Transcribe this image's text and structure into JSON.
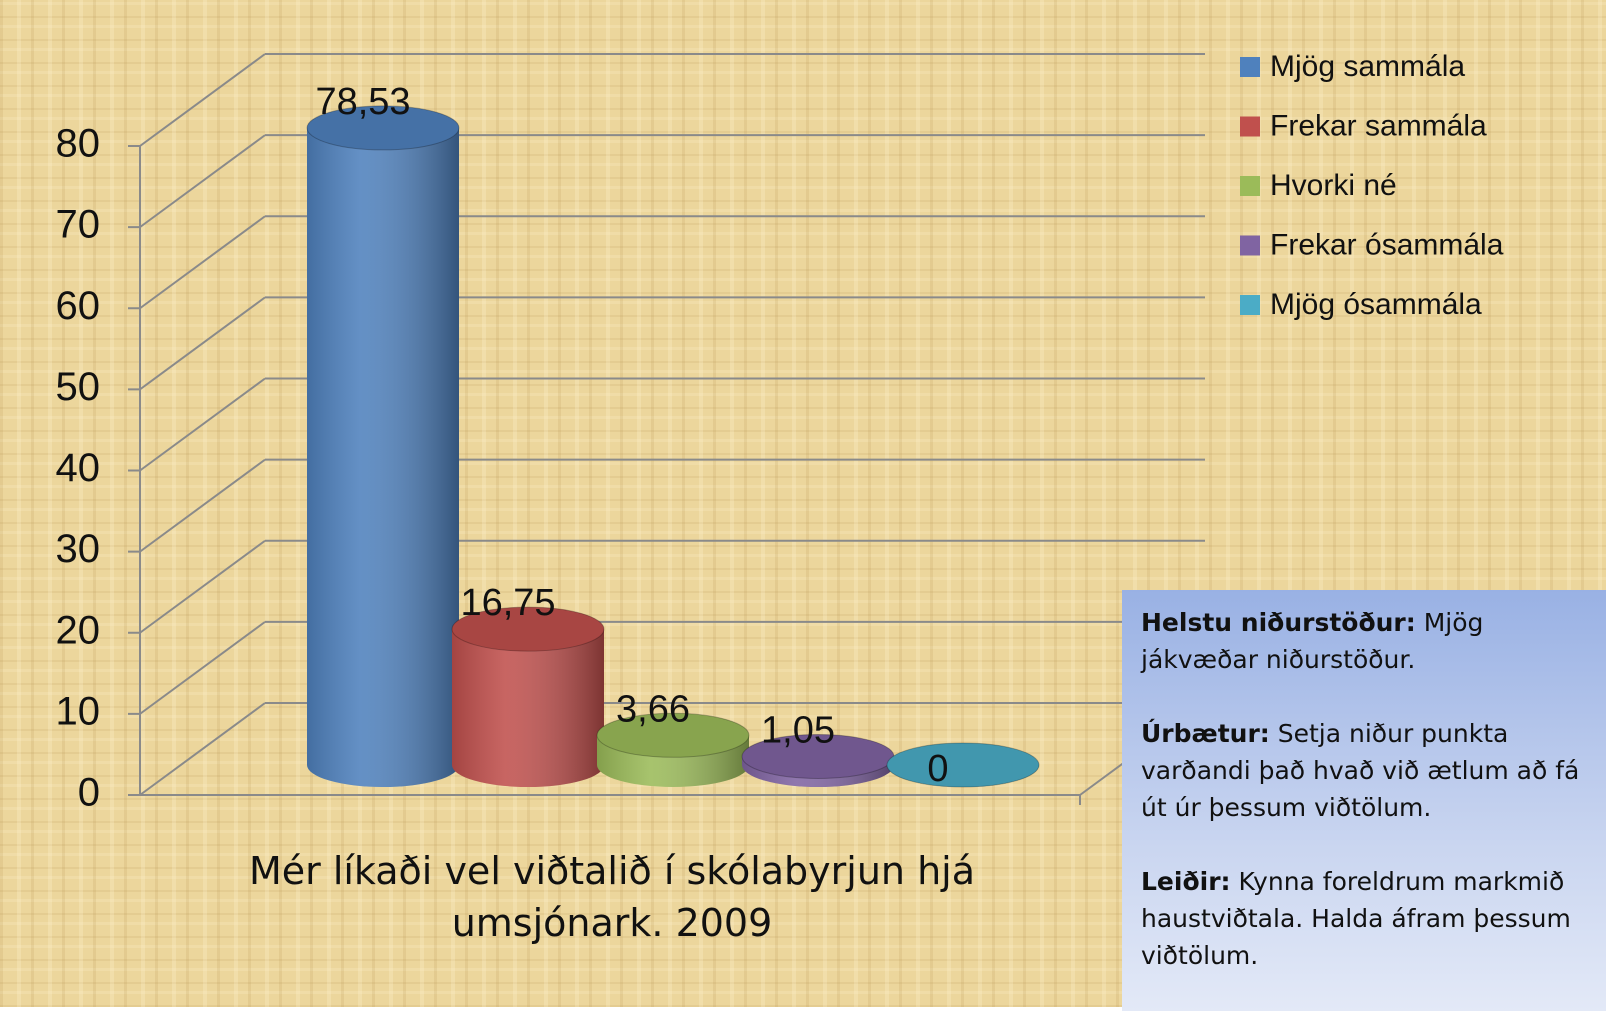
{
  "chart_data": {
    "type": "bar3d",
    "categories": [
      "Mér líkaði vel viðtalið í skólabyrjun hjá umsjónark. 2009"
    ],
    "series": [
      {
        "name": "Mjög sammála",
        "color": "#4f81bd",
        "values": [
          78.53
        ],
        "value_labels": [
          "78,53"
        ]
      },
      {
        "name": "Frekar sammála",
        "color": "#c0504d",
        "values": [
          16.75
        ],
        "value_labels": [
          "16,75"
        ]
      },
      {
        "name": "Hvorki né",
        "color": "#9bbb59",
        "values": [
          3.66
        ],
        "value_labels": [
          "3,66"
        ]
      },
      {
        "name": "Frekar ósammála",
        "color": "#8064a2",
        "values": [
          1.05
        ],
        "value_labels": [
          "1,05"
        ]
      },
      {
        "name": "Mjög ósammála",
        "color": "#4bacc6",
        "values": [
          0
        ],
        "value_labels": [
          "0"
        ]
      }
    ],
    "ylim": [
      0,
      80
    ],
    "yticks": [
      0,
      10,
      20,
      30,
      40,
      50,
      60,
      70,
      80
    ],
    "grid": true,
    "legend": "right"
  },
  "notes": [
    {
      "label": "Helstu niðurstöður:",
      "text": "Mjög jákvæðar niðurstöður."
    },
    {
      "label": "Úrbætur:",
      "text": "Setja niður punkta varðandi það hvað við ætlum að fá út úr þessum viðtölum."
    },
    {
      "label": "Leiðir:",
      "text": "Kynna foreldrum markmið haustviðtala. Halda áfram þessum viðtölum."
    }
  ]
}
